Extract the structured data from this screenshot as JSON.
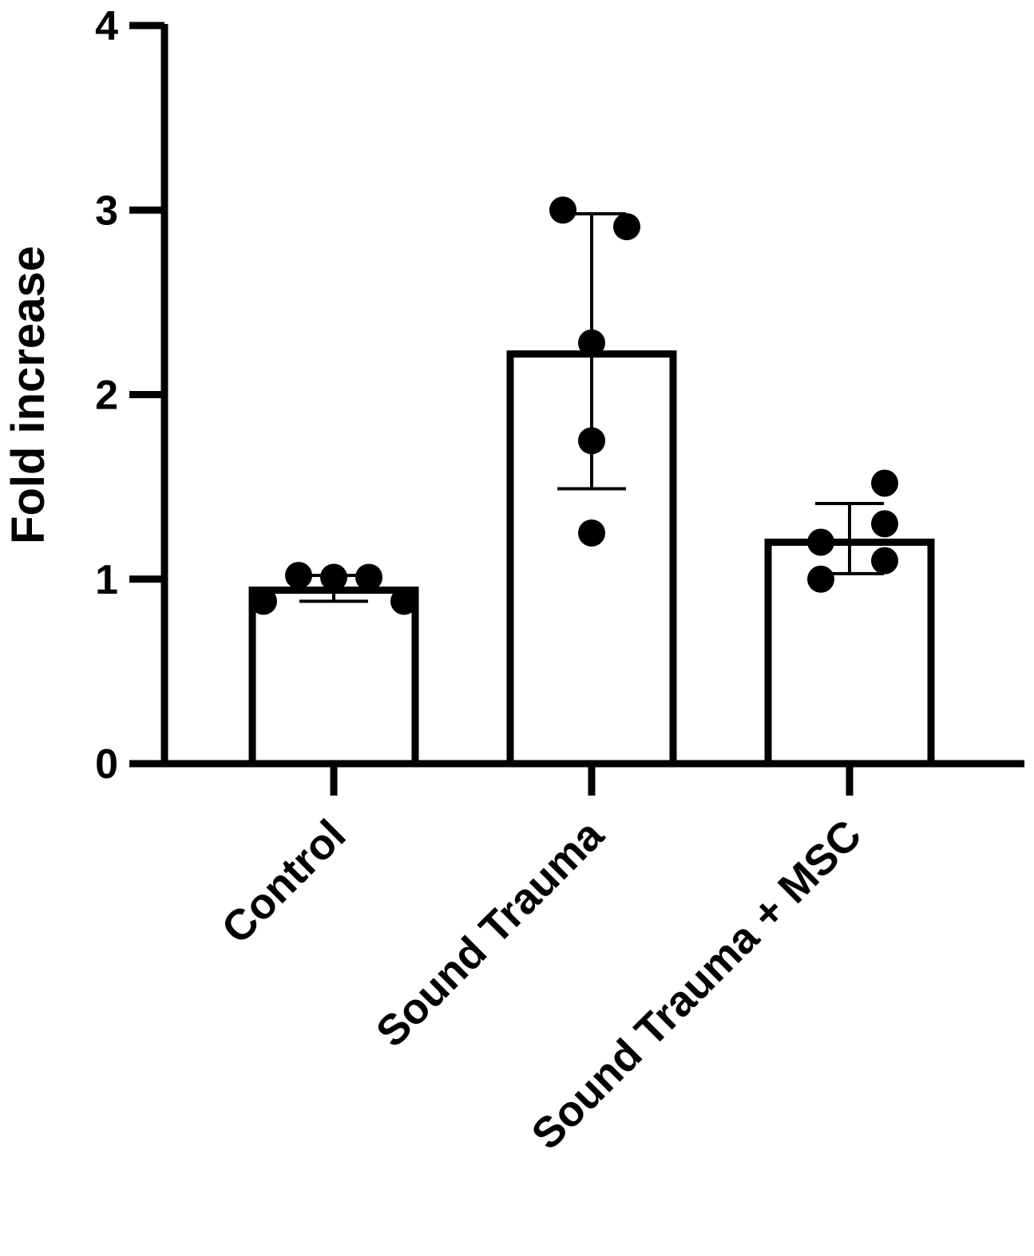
{
  "chart_data": {
    "type": "bar",
    "title": "",
    "xlabel": "",
    "ylabel": "Fold increase",
    "ylim": [
      0,
      4
    ],
    "yticks": [
      0,
      1,
      2,
      3,
      4
    ],
    "grid": false,
    "categories": [
      "Control",
      "Sound Trauma",
      "Sound Trauma + MSC"
    ],
    "values": [
      0.94,
      2.22,
      1.2
    ],
    "error": [
      {
        "low": 0.88,
        "high": 1.02
      },
      {
        "low": 1.49,
        "high": 2.98
      },
      {
        "low": 1.03,
        "high": 1.41
      }
    ],
    "points": [
      [
        0.88,
        1.02,
        1.01,
        1.01,
        0.88
      ],
      [
        3.0,
        2.91,
        2.28,
        1.75,
        1.25
      ],
      [
        1.52,
        1.2,
        1.3,
        1.0,
        1.1
      ]
    ],
    "colors": {
      "bar_fill": "#ffffff",
      "stroke": "#000000",
      "point": "#000000"
    }
  }
}
